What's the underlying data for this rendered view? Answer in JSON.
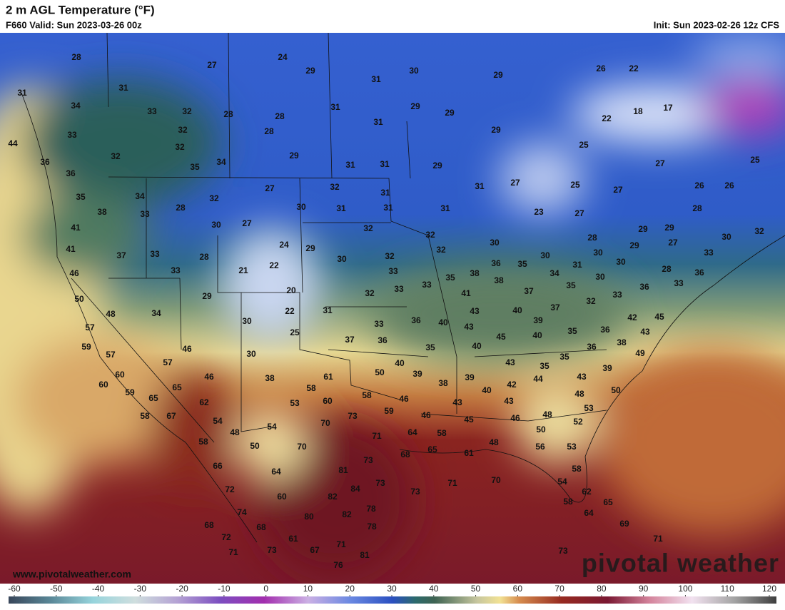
{
  "header": {
    "title": "2 m AGL Temperature (°F)",
    "valid": "F660 Valid: Sun 2023-03-26 00z",
    "init": "Init: Sun 2023-02-26 12z CFS"
  },
  "map": {
    "temperature_labels": [
      28,
      27,
      24,
      29,
      30,
      29,
      26,
      22,
      31,
      31,
      31,
      34,
      33,
      32,
      28,
      28,
      31,
      29,
      29,
      18,
      17,
      33,
      32,
      28,
      31,
      29,
      22,
      44,
      32,
      32,
      29,
      25,
      36,
      35,
      34,
      31,
      31,
      29,
      27,
      25,
      36,
      35,
      34,
      32,
      27,
      32,
      31,
      31,
      27,
      25,
      27,
      26,
      26,
      38,
      33,
      28,
      30,
      27,
      30,
      31,
      31,
      31,
      23,
      27,
      28,
      41,
      32,
      32,
      30,
      28,
      29,
      29,
      30,
      32,
      41,
      37,
      33,
      24,
      29,
      32,
      32,
      36,
      35,
      30,
      30,
      29,
      30,
      27,
      33,
      46,
      28,
      33,
      21,
      22,
      30,
      33,
      35,
      38,
      31,
      34,
      30,
      28,
      36,
      50,
      29,
      20,
      32,
      33,
      33,
      41,
      38,
      37,
      35,
      33,
      36,
      33,
      48,
      34,
      30,
      22,
      31,
      43,
      40,
      37,
      32,
      42,
      45,
      57,
      25,
      33,
      36,
      40,
      43,
      39,
      40,
      35,
      36,
      43,
      59,
      46,
      30,
      37,
      36,
      35,
      40,
      45,
      36,
      38,
      49,
      57,
      57,
      46,
      38,
      61,
      50,
      40,
      39,
      38,
      39,
      43,
      35,
      35,
      43,
      39,
      60,
      60,
      59,
      65,
      65,
      62,
      58,
      60,
      58,
      53,
      46,
      40,
      42,
      44,
      48,
      50,
      58,
      67,
      54,
      70,
      73,
      59,
      46,
      43,
      43,
      46,
      48,
      53,
      45,
      48,
      54,
      71,
      64,
      58,
      50,
      52,
      58,
      50,
      70,
      65,
      61,
      48,
      56,
      53,
      66,
      73,
      68,
      64,
      81,
      58,
      72,
      84,
      73,
      82,
      73,
      71,
      70,
      54,
      62,
      60,
      74,
      78,
      82,
      58,
      65,
      64,
      68,
      80,
      68,
      78,
      69,
      72,
      61,
      71,
      71,
      71,
      73,
      67,
      81,
      73,
      76
    ]
  },
  "colorbar": {
    "ticks": [
      -60,
      -50,
      -40,
      -30,
      -20,
      -10,
      0,
      10,
      20,
      30,
      40,
      50,
      60,
      70,
      80,
      90,
      100,
      110,
      120
    ]
  },
  "footer": {
    "website": "www.pivotalweather.com",
    "logo": "pivotal weather"
  }
}
